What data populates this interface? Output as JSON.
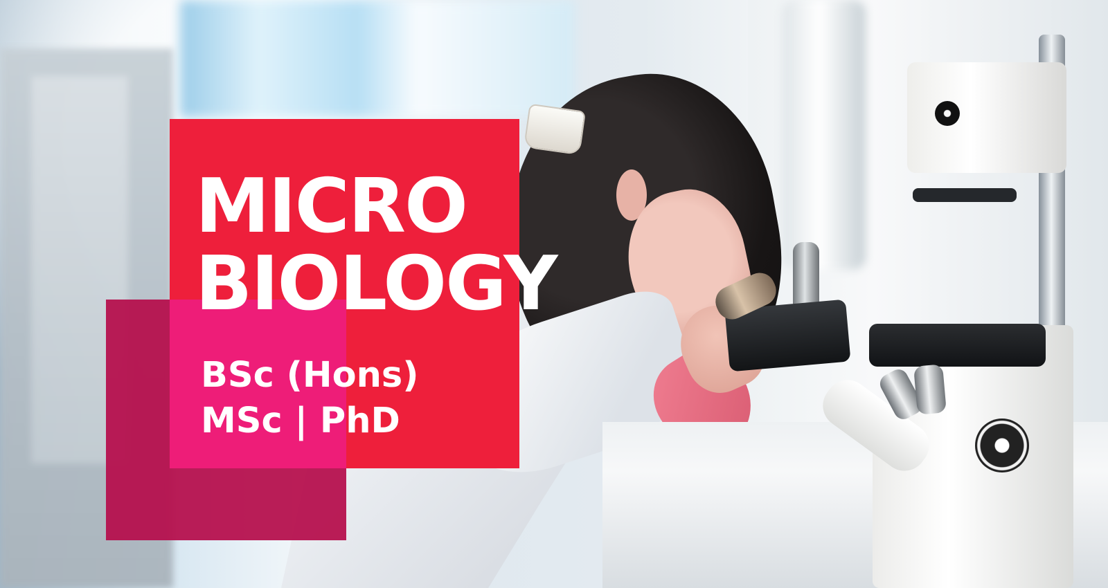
{
  "hero": {
    "title_line_1": "MICRO",
    "title_line_2": "BIOLOGY",
    "degree_line_1": "BSc (Hons)",
    "degree_line_2": "MSc | PhD"
  },
  "colors": {
    "primary_red": "#ee1f3b",
    "overlay_magenta": "#ee1d78",
    "dark_berry": "#b60f4d",
    "text": "#ffffff"
  },
  "image": {
    "scene": "lab-scene",
    "subject": "person-with-microscope"
  }
}
